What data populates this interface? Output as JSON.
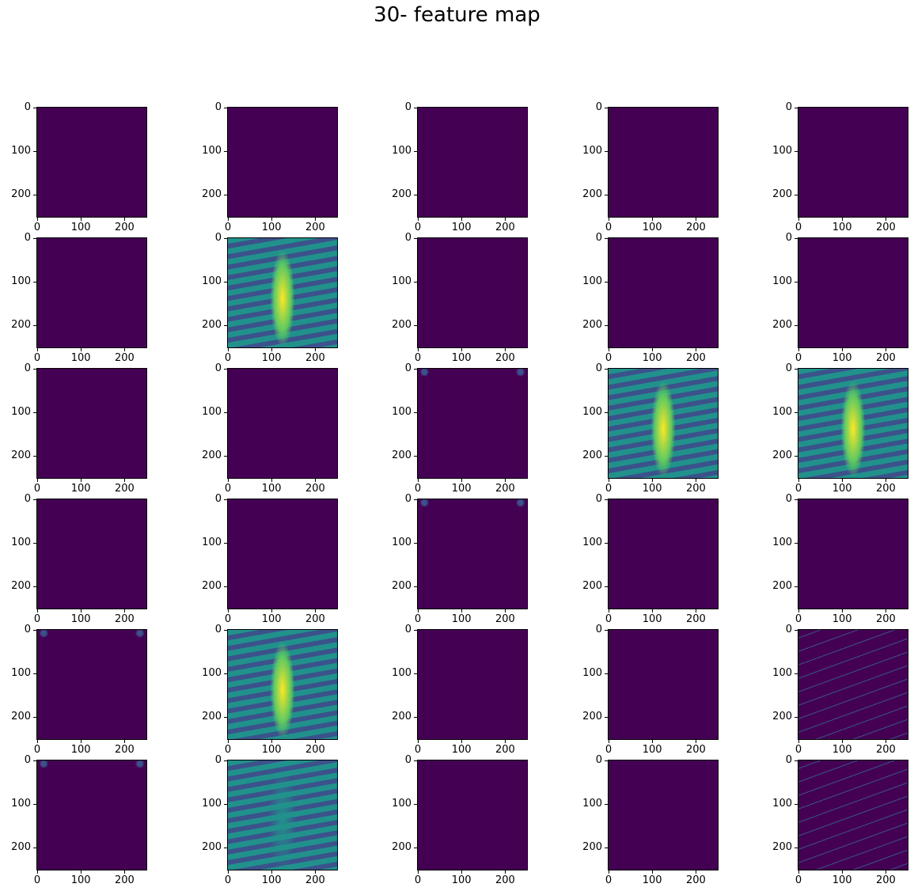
{
  "title": "30- feature map",
  "colormap": {
    "name": "viridis",
    "low": "#440154",
    "mid_low": "#3b528b",
    "mid": "#21918c",
    "mid_high": "#5ec962",
    "high": "#fde725"
  },
  "chart_data": {
    "type": "heatmap",
    "title": "30- feature map",
    "layout": {
      "rows": 6,
      "cols": 5
    },
    "xlim": [
      0,
      250
    ],
    "ylim": [
      250,
      0
    ],
    "xticks": [
      "0",
      "100",
      "200"
    ],
    "yticks": [
      "0",
      "100",
      "200"
    ],
    "panels": [
      {
        "index": 1,
        "content": "near-zero activation"
      },
      {
        "index": 2,
        "content": "near-zero activation"
      },
      {
        "index": 3,
        "content": "near-zero activation"
      },
      {
        "index": 4,
        "content": "near-zero activation"
      },
      {
        "index": 5,
        "content": "near-zero activation"
      },
      {
        "index": 6,
        "content": "near-zero activation"
      },
      {
        "index": 7,
        "content": "strong chest x-ray activation"
      },
      {
        "index": 8,
        "content": "near-zero activation"
      },
      {
        "index": 9,
        "content": "near-zero activation"
      },
      {
        "index": 10,
        "content": "near-zero activation"
      },
      {
        "index": 11,
        "content": "near-zero activation"
      },
      {
        "index": 12,
        "content": "near-zero activation"
      },
      {
        "index": 13,
        "content": "sparse edge activation"
      },
      {
        "index": 14,
        "content": "strong chest x-ray activation"
      },
      {
        "index": 15,
        "content": "strong chest x-ray activation"
      },
      {
        "index": 16,
        "content": "near-zero activation"
      },
      {
        "index": 17,
        "content": "near-zero activation"
      },
      {
        "index": 18,
        "content": "sparse edge activation"
      },
      {
        "index": 19,
        "content": "near-zero activation"
      },
      {
        "index": 20,
        "content": "near-zero activation"
      },
      {
        "index": 21,
        "content": "sparse edge activation"
      },
      {
        "index": 22,
        "content": "strong chest x-ray activation"
      },
      {
        "index": 23,
        "content": "near-zero activation"
      },
      {
        "index": 24,
        "content": "near-zero activation"
      },
      {
        "index": 25,
        "content": "edge-detector activation"
      },
      {
        "index": 26,
        "content": "sparse edge activation"
      },
      {
        "index": 27,
        "content": "moderate chest x-ray activation"
      },
      {
        "index": 28,
        "content": "near-zero activation"
      },
      {
        "index": 29,
        "content": "near-zero activation"
      },
      {
        "index": 30,
        "content": "edge-detector activation"
      }
    ]
  }
}
